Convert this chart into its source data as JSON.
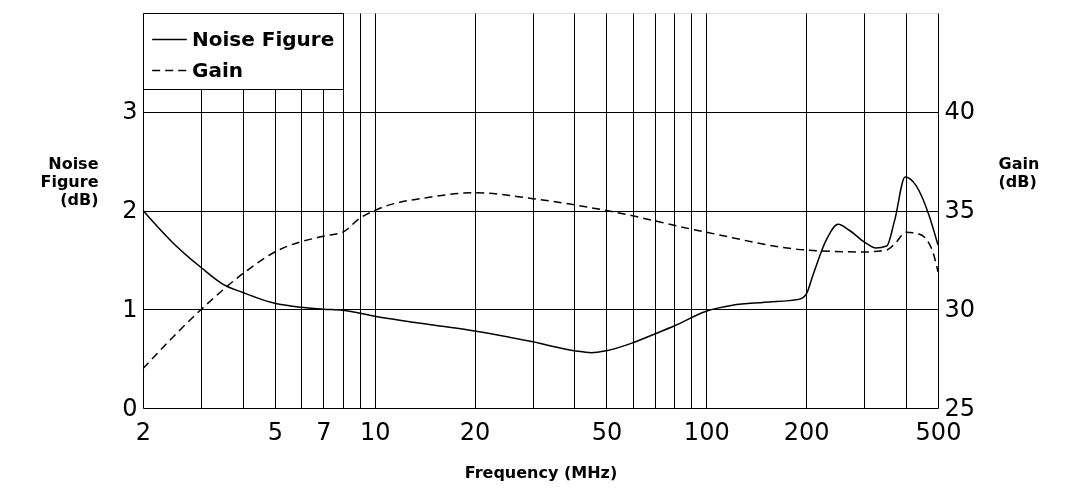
{
  "chart_data": {
    "type": "line",
    "xlabel": "Frequency (MHz)",
    "ylabel": "Noise Figure (dB)",
    "y2label": "Gain (dB)",
    "log": "x",
    "grid": true,
    "legend": "top left",
    "xlim": [
      2,
      500
    ],
    "xticks": [
      2,
      {
        "value": 3,
        "label": null
      },
      {
        "value": 4,
        "label": null
      },
      5,
      {
        "value": 6,
        "label": null
      },
      7,
      {
        "value": 8,
        "label": null
      },
      {
        "value": 9,
        "label": null
      },
      10,
      20,
      {
        "value": 30,
        "label": null
      },
      {
        "value": 40,
        "label": null
      },
      50,
      {
        "value": 60,
        "label": null
      },
      {
        "value": 70,
        "label": null
      },
      {
        "value": 80,
        "label": null
      },
      {
        "value": 90,
        "label": null
      },
      100,
      200,
      {
        "value": 300,
        "label": null
      },
      {
        "value": 400,
        "label": null
      },
      500
    ],
    "ylim": [
      0,
      4
    ],
    "yticks": [
      0,
      1,
      2,
      3
    ],
    "y2lim": [
      25,
      45
    ],
    "y2ticks": [
      25,
      30,
      35,
      40
    ],
    "series": [
      {
        "name": "Noise Figure",
        "color": "#000000",
        "line_style": "solid",
        "x": [
          2,
          2.5,
          3,
          3.5,
          4,
          5,
          6,
          7,
          8,
          10,
          15,
          20,
          30,
          40,
          45,
          50,
          60,
          70,
          80,
          100,
          120,
          150,
          190,
          200,
          210,
          230,
          250,
          270,
          300,
          325,
          350,
          370,
          398,
          430,
          470,
          500
        ],
        "values": [
          2.0,
          1.65,
          1.42,
          1.25,
          1.17,
          1.06,
          1.02,
          1.0,
          0.99,
          0.93,
          0.84,
          0.78,
          0.67,
          0.58,
          0.56,
          0.58,
          0.66,
          0.75,
          0.83,
          0.98,
          1.04,
          1.07,
          1.1,
          1.15,
          1.35,
          1.7,
          1.86,
          1.8,
          1.68,
          1.62,
          1.64,
          1.9,
          2.34,
          2.25,
          1.95,
          1.65
        ]
      },
      {
        "name": "Gain",
        "color": "#000000",
        "line_style": "dashed",
        "axis": "y2",
        "x": [
          2,
          3,
          4,
          5,
          7,
          8,
          9,
          10,
          15,
          20,
          30,
          50,
          100,
          200,
          300,
          350,
          370,
          400,
          440,
          480,
          500
        ],
        "values": [
          27.0,
          30.0,
          31.8,
          32.9,
          33.7,
          33.9,
          34.6,
          35.0,
          35.7,
          35.9,
          35.6,
          35.0,
          33.9,
          33.0,
          32.9,
          33.0,
          33.3,
          33.9,
          33.8,
          33.0,
          31.9
        ]
      }
    ]
  }
}
